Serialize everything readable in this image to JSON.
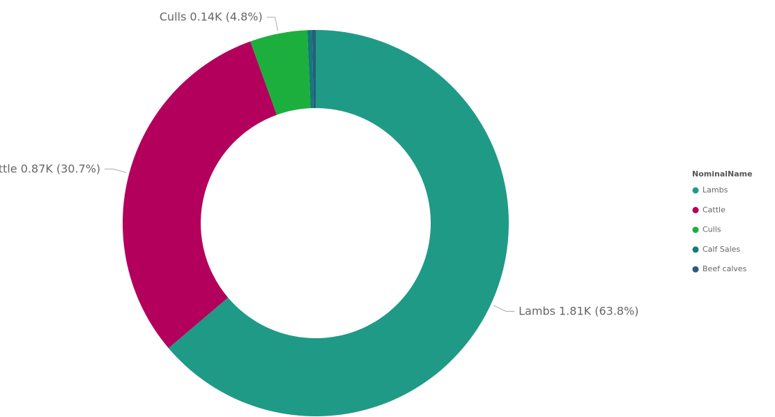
{
  "chart_data": {
    "type": "donut",
    "legend_title": "NominalName",
    "categories": [
      "Lambs",
      "Cattle",
      "Culls",
      "Calf Sales",
      "Beef calves"
    ],
    "values": [
      63.8,
      30.7,
      4.8,
      0.4,
      0.3
    ],
    "value_labels": [
      "1.81K (63.8%)",
      "0.87K (30.7%)",
      "0.14K (4.8%)",
      null,
      null
    ],
    "colors": [
      "#1f9a86",
      "#b3005c",
      "#1daf3e",
      "#127a7a",
      "#2b5a7e"
    ],
    "legend": "right"
  }
}
